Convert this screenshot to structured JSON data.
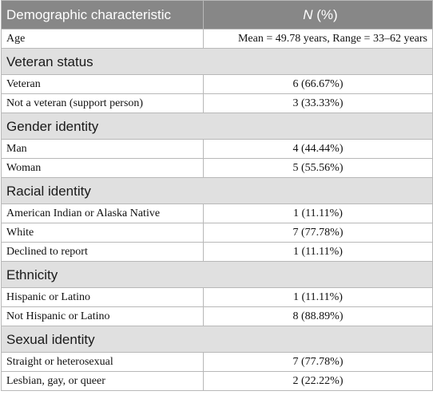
{
  "header": {
    "characteristic": "Demographic characteristic",
    "n_label": "N",
    "pct_label": " (%)"
  },
  "age": {
    "label": "Age",
    "value": "Mean = 49.78 years, Range = 33–62 years"
  },
  "sections": [
    {
      "title": "Veteran status",
      "rows": [
        {
          "label": "Veteran",
          "value": "6 (66.67%)"
        },
        {
          "label": "Not a veteran (support person)",
          "value": "3 (33.33%)"
        }
      ]
    },
    {
      "title": "Gender identity",
      "rows": [
        {
          "label": "Man",
          "value": "4 (44.44%)"
        },
        {
          "label": "Woman",
          "value": "5 (55.56%)"
        }
      ]
    },
    {
      "title": "Racial identity",
      "rows": [
        {
          "label": "American Indian or Alaska Native",
          "value": "1 (11.11%)"
        },
        {
          "label": "White",
          "value": "7 (77.78%)"
        },
        {
          "label": "Declined to report",
          "value": "1 (11.11%)"
        }
      ]
    },
    {
      "title": "Ethnicity",
      "rows": [
        {
          "label": "Hispanic or Latino",
          "value": "1 (11.11%)"
        },
        {
          "label": "Not Hispanic or Latino",
          "value": "8 (88.89%)"
        }
      ]
    },
    {
      "title": "Sexual identity",
      "rows": [
        {
          "label": "Straight or heterosexual",
          "value": "7 (77.78%)"
        },
        {
          "label": "Lesbian, gay, or queer",
          "value": "2 (22.22%)"
        }
      ]
    }
  ]
}
